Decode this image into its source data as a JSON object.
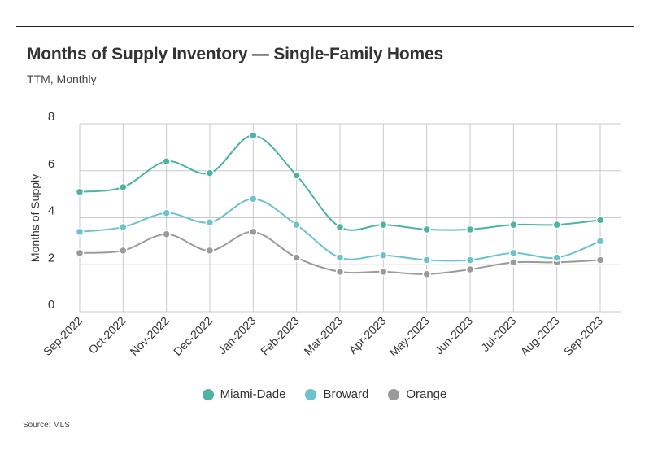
{
  "title": "Months of Supply Inventory — Single-Family Homes",
  "subtitle": "TTM, Monthly",
  "source": "Source: MLS",
  "chart_data": {
    "type": "line",
    "title": "Months of Supply Inventory — Single-Family Homes",
    "subtitle": "TTM, Monthly",
    "xlabel": "",
    "ylabel": "Months of Supply",
    "ylim": [
      0,
      8
    ],
    "yticks": [
      0,
      2,
      4,
      6,
      8
    ],
    "grid": true,
    "legend_position": "bottom-center",
    "categories": [
      "Sep-2022",
      "Oct-2022",
      "Nov-2022",
      "Dec-2022",
      "Jan-2023",
      "Feb-2023",
      "Mar-2023",
      "Apr-2023",
      "May-2023",
      "Jun-2023",
      "Jul-2023",
      "Aug-2023",
      "Sep-2023"
    ],
    "series": [
      {
        "name": "Miami-Dade",
        "color": "#4bb5a2",
        "values": [
          5.1,
          5.3,
          6.4,
          5.9,
          7.5,
          5.8,
          3.6,
          3.7,
          3.5,
          3.5,
          3.7,
          3.7,
          3.9
        ]
      },
      {
        "name": "Broward",
        "color": "#6cc3cc",
        "values": [
          3.4,
          3.6,
          4.2,
          3.8,
          4.8,
          3.7,
          2.3,
          2.4,
          2.2,
          2.2,
          2.5,
          2.3,
          3.0
        ]
      },
      {
        "name": "Orange",
        "color": "#9a9a9a",
        "values": [
          2.5,
          2.6,
          3.3,
          2.6,
          3.4,
          2.3,
          1.7,
          1.7,
          1.6,
          1.8,
          2.1,
          2.1,
          2.2
        ]
      }
    ]
  }
}
